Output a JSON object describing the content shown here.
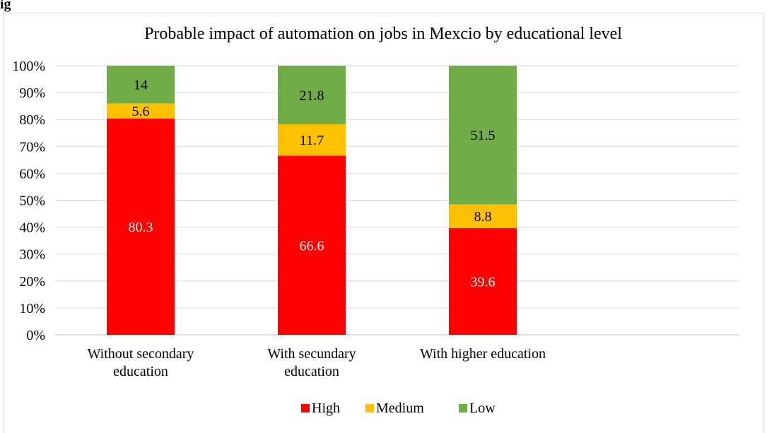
{
  "header_fragment": "ig",
  "chart_data": {
    "type": "bar",
    "stacked": true,
    "percent_stacked": true,
    "title": "Probable impact of automation on jobs in Mexcio by educational level",
    "xlabel": "",
    "ylabel": "",
    "ylim": [
      0,
      100
    ],
    "y_ticks": [
      "0%",
      "10%",
      "20%",
      "30%",
      "40%",
      "50%",
      "60%",
      "70%",
      "80%",
      "90%",
      "100%"
    ],
    "categories": [
      [
        "Without secondary",
        "education"
      ],
      [
        "With secundary",
        "education"
      ],
      [
        "With higher education"
      ]
    ],
    "series": [
      {
        "name": "High",
        "color": "#ff0000",
        "label_color": "#ffffff",
        "values": [
          80.3,
          66.6,
          39.6
        ]
      },
      {
        "name": "Medium",
        "color": "#ffc000",
        "label_color": "#000000",
        "values": [
          5.6,
          11.7,
          8.8
        ]
      },
      {
        "name": "Low",
        "color": "#70ad47",
        "label_color": "#000000",
        "values": [
          14,
          21.8,
          51.5
        ]
      }
    ],
    "grid": true,
    "legend": "bottom"
  }
}
